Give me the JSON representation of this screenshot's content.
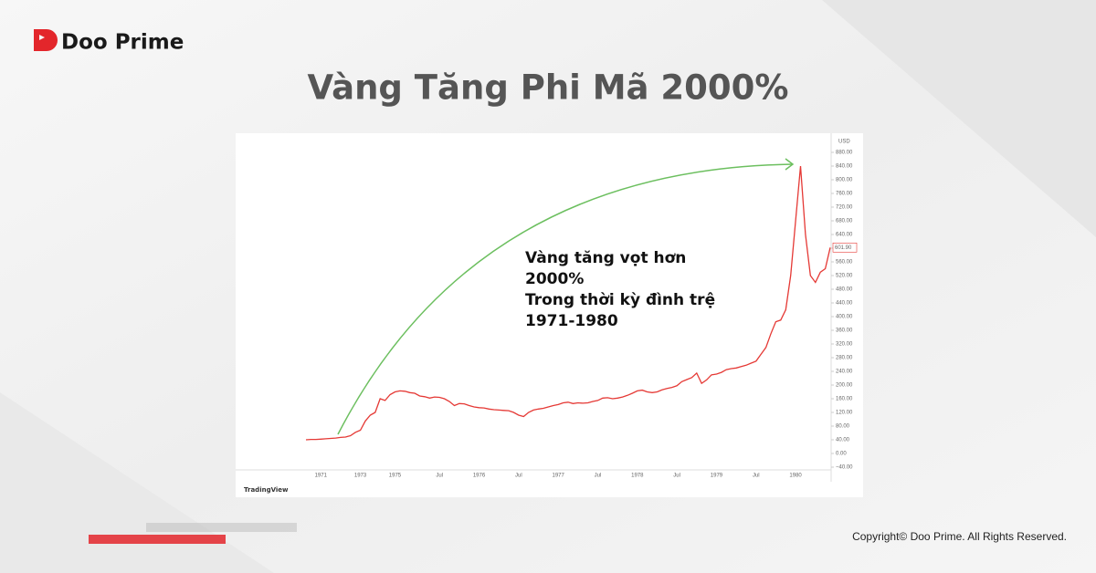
{
  "brand": "Doo Prime",
  "title": "Vàng Tăng Phi Mã 2000%",
  "copyright": "Copyright© Doo Prime. All Rights Reserved.",
  "chart_data": {
    "type": "line",
    "axis_unit": "USD",
    "source": "TradingView",
    "annotation": [
      "Vàng tăng vọt hơn",
      "2000%",
      "Trong thời kỳ đình trệ",
      "1971-1980"
    ],
    "color": "#e53935",
    "last_value_label": "601.90",
    "categories": [
      null,
      null,
      null,
      "1971",
      null,
      null,
      null,
      null,
      null,
      null,
      null,
      "1973",
      null,
      null,
      null,
      null,
      null,
      null,
      "1975",
      null,
      null,
      null,
      null,
      null,
      null,
      null,
      null,
      "Jul",
      null,
      null,
      null,
      null,
      null,
      null,
      null,
      "1976",
      null,
      null,
      null,
      null,
      null,
      null,
      null,
      "Jul",
      null,
      null,
      null,
      null,
      null,
      null,
      null,
      "1977",
      null,
      null,
      null,
      null,
      null,
      null,
      null,
      "Jul",
      null,
      null,
      null,
      null,
      null,
      null,
      null,
      "1978",
      null,
      null,
      null,
      null,
      null,
      null,
      null,
      "Jul",
      null,
      null,
      null,
      null,
      null,
      null,
      null,
      "1979",
      null,
      null,
      null,
      null,
      null,
      null,
      null,
      "Jul",
      null,
      null,
      null,
      null,
      null,
      null,
      null,
      "1980",
      null,
      null,
      null,
      null,
      null,
      null,
      null
    ],
    "values": [
      40,
      41,
      41,
      42,
      43,
      44,
      45,
      47,
      48,
      52,
      62,
      68,
      95,
      112,
      120,
      160,
      155,
      172,
      180,
      183,
      182,
      178,
      176,
      168,
      166,
      162,
      165,
      164,
      160,
      152,
      140,
      146,
      145,
      140,
      136,
      134,
      133,
      130,
      128,
      127,
      126,
      125,
      120,
      112,
      108,
      120,
      127,
      130,
      132,
      136,
      140,
      143,
      148,
      150,
      146,
      148,
      147,
      148,
      152,
      155,
      162,
      163,
      160,
      162,
      165,
      170,
      176,
      183,
      185,
      180,
      178,
      180,
      186,
      190,
      193,
      198,
      210,
      216,
      222,
      235,
      205,
      215,
      230,
      232,
      237,
      245,
      248,
      250,
      254,
      258,
      264,
      270,
      290,
      310,
      350,
      385,
      390,
      420,
      520,
      680,
      840,
      640,
      520,
      500,
      530,
      540,
      601.9
    ],
    "ylim": [
      -40,
      880
    ],
    "yticks": [
      {
        "value": 880,
        "label": "880.00"
      },
      {
        "value": 840,
        "label": "840.00"
      },
      {
        "value": 800,
        "label": "800.00"
      },
      {
        "value": 760,
        "label": "760.00"
      },
      {
        "value": 720,
        "label": "720.00"
      },
      {
        "value": 680,
        "label": "680.00"
      },
      {
        "value": 640,
        "label": "640.00"
      },
      {
        "value": 600,
        "label": "600.00"
      },
      {
        "value": 560,
        "label": "560.00"
      },
      {
        "value": 520,
        "label": "520.00"
      },
      {
        "value": 480,
        "label": "480.00"
      },
      {
        "value": 440,
        "label": "440.00"
      },
      {
        "value": 400,
        "label": "400.00"
      },
      {
        "value": 360,
        "label": "360.00"
      },
      {
        "value": 320,
        "label": "320.00"
      },
      {
        "value": 280,
        "label": "280.00"
      },
      {
        "value": 240,
        "label": "240.00"
      },
      {
        "value": 200,
        "label": "200.00"
      },
      {
        "value": 160,
        "label": "160.00"
      },
      {
        "value": 120,
        "label": "120.00"
      },
      {
        "value": 80,
        "label": "80.00"
      },
      {
        "value": 40,
        "label": "40.00"
      },
      {
        "value": 0,
        "label": "0.00"
      },
      {
        "value": -40,
        "label": "−40.00"
      }
    ],
    "grid": false
  }
}
